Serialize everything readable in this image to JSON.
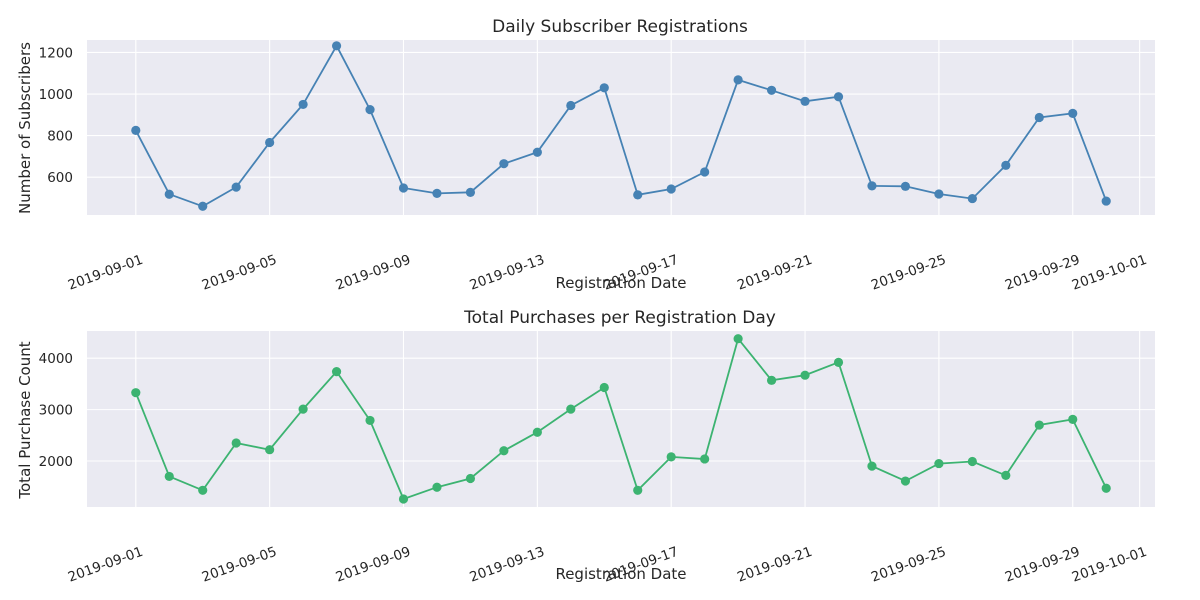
{
  "chart_data": [
    {
      "type": "line",
      "title": "Daily Subscriber Registrations",
      "xlabel": "Registration Date",
      "ylabel": "Number of Subscribers",
      "x": [
        "2019-09-01",
        "2019-09-02",
        "2019-09-03",
        "2019-09-04",
        "2019-09-05",
        "2019-09-06",
        "2019-09-07",
        "2019-09-08",
        "2019-09-09",
        "2019-09-10",
        "2019-09-11",
        "2019-09-12",
        "2019-09-13",
        "2019-09-14",
        "2019-09-15",
        "2019-09-16",
        "2019-09-17",
        "2019-09-18",
        "2019-09-19",
        "2019-09-20",
        "2019-09-21",
        "2019-09-22",
        "2019-09-23",
        "2019-09-24",
        "2019-09-25",
        "2019-09-26",
        "2019-09-27",
        "2019-09-28",
        "2019-09-29",
        "2019-09-30"
      ],
      "values": [
        825,
        518,
        460,
        552,
        767,
        950,
        1232,
        925,
        548,
        522,
        527,
        665,
        720,
        945,
        1030,
        515,
        543,
        625,
        1068,
        1018,
        965,
        987,
        558,
        556,
        519,
        497,
        657,
        887,
        907,
        485
      ],
      "xticks": [
        "2019-09-01",
        "2019-09-05",
        "2019-09-09",
        "2019-09-13",
        "2019-09-17",
        "2019-09-21",
        "2019-09-25",
        "2019-09-29",
        "2019-10-01"
      ],
      "yticks": [
        600,
        800,
        1000,
        1200
      ],
      "ylim": [
        418,
        1260
      ],
      "xlim": [
        "2019-08-30 13:00",
        "2019-10-01 11:00"
      ],
      "color": "#4682b4",
      "grid": true
    },
    {
      "type": "line",
      "title": "Total Purchases per Registration Day",
      "xlabel": "Registration Date",
      "ylabel": "Total Purchase Count",
      "x": [
        "2019-09-01",
        "2019-09-02",
        "2019-09-03",
        "2019-09-04",
        "2019-09-05",
        "2019-09-06",
        "2019-09-07",
        "2019-09-08",
        "2019-09-09",
        "2019-09-10",
        "2019-09-11",
        "2019-09-12",
        "2019-09-13",
        "2019-09-14",
        "2019-09-15",
        "2019-09-16",
        "2019-09-17",
        "2019-09-18",
        "2019-09-19",
        "2019-09-20",
        "2019-09-21",
        "2019-09-22",
        "2019-09-23",
        "2019-09-24",
        "2019-09-25",
        "2019-09-26",
        "2019-09-27",
        "2019-09-28",
        "2019-09-29",
        "2019-09-30"
      ],
      "values": [
        3330,
        1700,
        1430,
        2350,
        2220,
        3010,
        3740,
        2790,
        1260,
        1490,
        1660,
        2200,
        2560,
        3010,
        3430,
        1430,
        2080,
        2040,
        4380,
        3570,
        3670,
        3920,
        1900,
        1610,
        1950,
        1990,
        1720,
        2700,
        2810,
        1470
      ],
      "xticks": [
        "2019-09-01",
        "2019-09-05",
        "2019-09-09",
        "2019-09-13",
        "2019-09-17",
        "2019-09-21",
        "2019-09-25",
        "2019-09-29",
        "2019-10-01"
      ],
      "yticks": [
        2000,
        3000,
        4000
      ],
      "ylim": [
        1105,
        4530
      ],
      "xlim": [
        "2019-08-30 13:00",
        "2019-10-01 11:00"
      ],
      "color": "#3cb371",
      "grid": true
    }
  ]
}
